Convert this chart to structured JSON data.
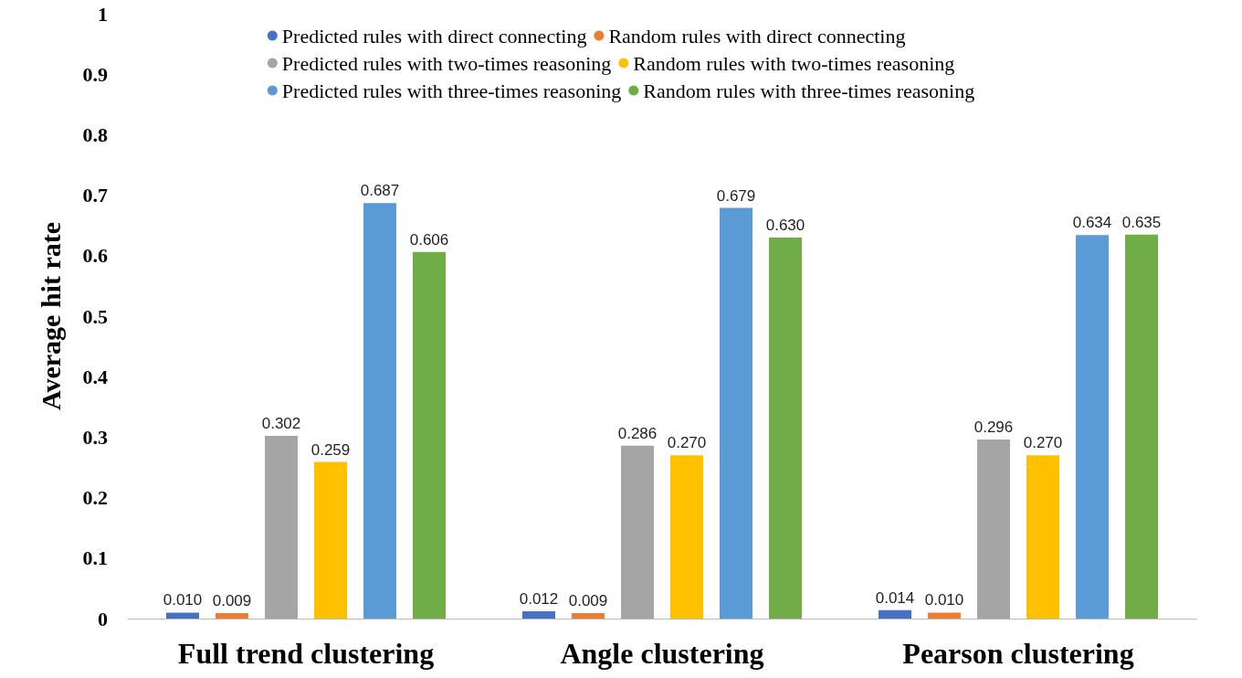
{
  "chart_data": {
    "type": "bar",
    "ylabel": "Average hit rate",
    "categories": [
      "Full trend clustering",
      "Angle clustering",
      "Pearson clustering"
    ],
    "series": [
      {
        "name": "Predicted rules with direct connecting",
        "color": "#4472c4",
        "values": [
          0.01,
          0.012,
          0.014
        ],
        "value_labels": [
          "0.010",
          "0.012",
          "0.014"
        ]
      },
      {
        "name": "Random rules with direct connecting",
        "color": "#ed7d31",
        "values": [
          0.009,
          0.009,
          0.01
        ],
        "value_labels": [
          "0.009",
          "0.009",
          "0.010"
        ]
      },
      {
        "name": "Predicted rules with two-times reasoning",
        "color": "#a5a5a5",
        "values": [
          0.302,
          0.286,
          0.296
        ],
        "value_labels": [
          "0.302",
          "0.286",
          "0.296"
        ]
      },
      {
        "name": "Random rules with two-times reasoning",
        "color": "#ffc000",
        "values": [
          0.259,
          0.27,
          0.27
        ],
        "value_labels": [
          "0.259",
          "0.270",
          "0.270"
        ]
      },
      {
        "name": "Predicted rules with three-times reasoning",
        "color": "#5b9bd5",
        "values": [
          0.687,
          0.679,
          0.634
        ],
        "value_labels": [
          "0.687",
          "0.679",
          "0.634"
        ]
      },
      {
        "name": "Random rules with three-times reasoning",
        "color": "#70ad47",
        "values": [
          0.606,
          0.63,
          0.635
        ],
        "value_labels": [
          "0.606",
          "0.630",
          "0.635"
        ]
      }
    ],
    "ylim": [
      0,
      1
    ],
    "yticks": [
      0,
      0.1,
      0.2,
      0.3,
      0.4,
      0.5,
      0.6,
      0.7,
      0.8,
      0.9,
      1
    ],
    "grid": false,
    "legend": "top"
  }
}
